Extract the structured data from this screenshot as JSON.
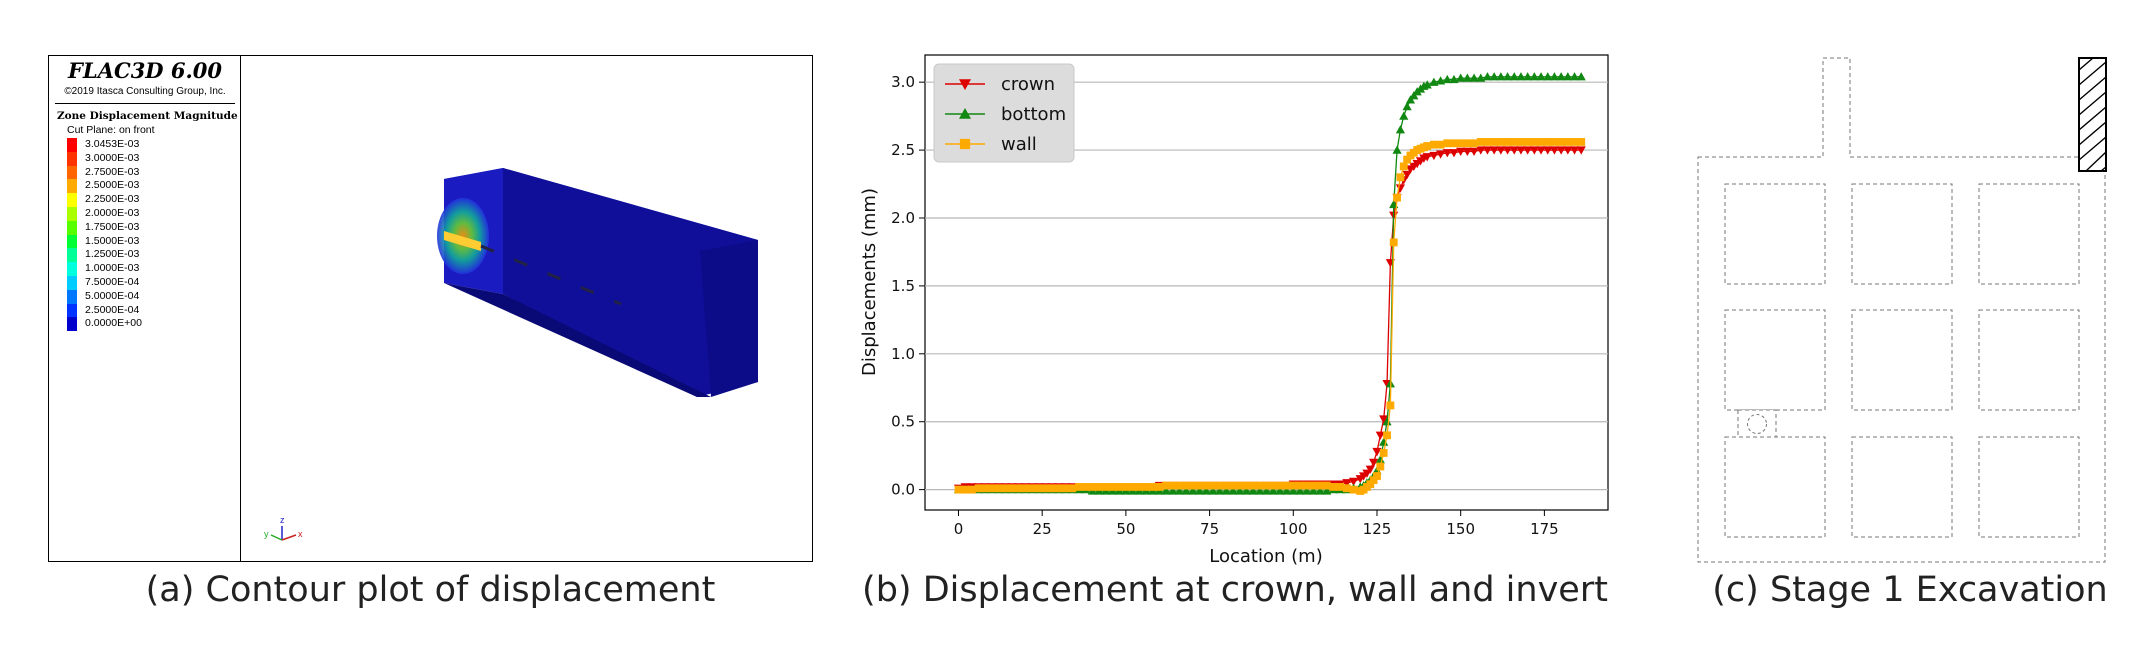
{
  "panel_a": {
    "title": "FLAC3D 6.00",
    "copyright": "©2019 Itasca Consulting Group, Inc.",
    "zone_title": "Zone Displacement Magnitude",
    "cut_plane": "Cut Plane: on front",
    "contours": [
      {
        "label": "3.0453E-03",
        "color": "#ff0000"
      },
      {
        "label": "3.0000E-03",
        "color": "#ff3300"
      },
      {
        "label": "2.7500E-03",
        "color": "#ff6600"
      },
      {
        "label": "2.5000E-03",
        "color": "#ffaa00"
      },
      {
        "label": "2.2500E-03",
        "color": "#ffff00"
      },
      {
        "label": "2.0000E-03",
        "color": "#aaff00"
      },
      {
        "label": "1.7500E-03",
        "color": "#55ff00"
      },
      {
        "label": "1.5000E-03",
        "color": "#00ff33"
      },
      {
        "label": "1.2500E-03",
        "color": "#00ff99"
      },
      {
        "label": "1.0000E-03",
        "color": "#00ffdd"
      },
      {
        "label": "7.5000E-04",
        "color": "#00ccff"
      },
      {
        "label": "5.0000E-04",
        "color": "#0077ff"
      },
      {
        "label": "2.5000E-04",
        "color": "#0033ff"
      },
      {
        "label": "0.0000E+00",
        "color": "#0000cc"
      }
    ],
    "axes_labels": {
      "x": "x",
      "y": "y",
      "z": "z"
    }
  },
  "captions": {
    "a": "(a) Contour plot of displacement",
    "b": "(b) Displacement at crown, wall and invert",
    "c": "(c) Stage 1 Excavation"
  },
  "chart_data": {
    "type": "line",
    "xlabel": "Location (m)",
    "ylabel": "Displacements (mm)",
    "xlim": [
      -10,
      194
    ],
    "ylim": [
      -0.15,
      3.2
    ],
    "xticks": [
      0,
      25,
      50,
      75,
      100,
      125,
      150,
      175
    ],
    "yticks": [
      0.0,
      0.5,
      1.0,
      1.5,
      2.0,
      2.5,
      3.0
    ],
    "grid": "horizontal",
    "legend_position": "top-left",
    "series": [
      {
        "name": "crown",
        "color": "#dd0000",
        "marker": "triangle-down",
        "x": [
          0,
          2,
          4,
          6,
          8,
          10,
          12,
          14,
          16,
          18,
          20,
          22,
          24,
          26,
          28,
          30,
          32,
          34,
          36,
          38,
          40,
          42,
          44,
          46,
          48,
          50,
          52,
          54,
          56,
          58,
          60,
          62,
          64,
          66,
          68,
          70,
          72,
          74,
          76,
          78,
          80,
          82,
          84,
          86,
          88,
          90,
          92,
          94,
          96,
          98,
          100,
          102,
          104,
          106,
          108,
          110,
          112,
          114,
          116,
          118,
          120,
          121,
          122,
          123,
          124,
          125,
          126,
          127,
          128,
          129,
          130,
          131,
          132,
          133,
          134,
          135,
          136,
          137,
          138,
          139,
          140,
          142,
          144,
          146,
          148,
          150,
          152,
          154,
          156,
          158,
          160,
          162,
          164,
          166,
          168,
          170,
          172,
          174,
          176,
          178,
          180,
          182,
          184,
          186
        ],
        "y": [
          0.01,
          0.02,
          0.02,
          0.02,
          0.02,
          0.02,
          0.02,
          0.02,
          0.02,
          0.02,
          0.02,
          0.02,
          0.02,
          0.02,
          0.02,
          0.02,
          0.02,
          0.02,
          0.02,
          0.02,
          0.02,
          0.02,
          0.02,
          0.02,
          0.02,
          0.02,
          0.02,
          0.02,
          0.02,
          0.02,
          0.03,
          0.03,
          0.03,
          0.03,
          0.03,
          0.03,
          0.03,
          0.03,
          0.03,
          0.03,
          0.03,
          0.03,
          0.03,
          0.03,
          0.03,
          0.03,
          0.03,
          0.03,
          0.03,
          0.03,
          0.04,
          0.04,
          0.04,
          0.04,
          0.04,
          0.04,
          0.04,
          0.04,
          0.05,
          0.06,
          0.08,
          0.1,
          0.12,
          0.15,
          0.2,
          0.28,
          0.4,
          0.52,
          0.78,
          1.67,
          2.02,
          2.15,
          2.22,
          2.28,
          2.32,
          2.36,
          2.38,
          2.4,
          2.42,
          2.44,
          2.45,
          2.46,
          2.47,
          2.48,
          2.48,
          2.49,
          2.49,
          2.49,
          2.5,
          2.5,
          2.5,
          2.5,
          2.5,
          2.5,
          2.5,
          2.5,
          2.5,
          2.5,
          2.5,
          2.5,
          2.5,
          2.5,
          2.5,
          2.5
        ]
      },
      {
        "name": "bottom",
        "color": "#118811",
        "marker": "triangle-up",
        "x": [
          0,
          2,
          4,
          6,
          8,
          10,
          12,
          14,
          16,
          18,
          20,
          22,
          24,
          26,
          28,
          30,
          32,
          34,
          36,
          38,
          40,
          42,
          44,
          46,
          48,
          50,
          52,
          54,
          56,
          58,
          60,
          62,
          64,
          66,
          68,
          70,
          72,
          74,
          76,
          78,
          80,
          82,
          84,
          86,
          88,
          90,
          92,
          94,
          96,
          98,
          100,
          102,
          104,
          106,
          108,
          110,
          112,
          114,
          116,
          118,
          120,
          121,
          122,
          123,
          124,
          125,
          126,
          127,
          128,
          129,
          130,
          131,
          132,
          133,
          134,
          135,
          136,
          137,
          138,
          139,
          140,
          142,
          144,
          146,
          148,
          150,
          152,
          154,
          156,
          158,
          160,
          162,
          164,
          166,
          168,
          170,
          172,
          174,
          176,
          178,
          180,
          182,
          184,
          186
        ],
        "y": [
          0.0,
          0.0,
          0.0,
          0.0,
          0.0,
          0.0,
          0.0,
          0.0,
          0.0,
          0.0,
          0.0,
          0.0,
          0.0,
          0.0,
          0.0,
          0.0,
          0.0,
          0.0,
          0.0,
          0.0,
          -0.01,
          -0.01,
          -0.01,
          -0.01,
          -0.01,
          -0.01,
          -0.01,
          -0.01,
          -0.01,
          -0.01,
          -0.01,
          -0.01,
          -0.01,
          -0.01,
          -0.01,
          -0.01,
          -0.01,
          -0.01,
          -0.01,
          -0.01,
          -0.01,
          -0.01,
          -0.01,
          -0.01,
          -0.01,
          -0.01,
          -0.01,
          -0.01,
          -0.01,
          -0.01,
          -0.01,
          -0.01,
          -0.01,
          -0.01,
          -0.01,
          -0.01,
          0.0,
          0.0,
          0.0,
          0.01,
          0.02,
          0.03,
          0.05,
          0.07,
          0.1,
          0.14,
          0.22,
          0.35,
          0.5,
          0.78,
          2.1,
          2.5,
          2.65,
          2.75,
          2.82,
          2.87,
          2.9,
          2.93,
          2.95,
          2.97,
          2.98,
          3.0,
          3.01,
          3.02,
          3.02,
          3.03,
          3.03,
          3.03,
          3.03,
          3.04,
          3.04,
          3.04,
          3.04,
          3.04,
          3.04,
          3.04,
          3.04,
          3.04,
          3.04,
          3.04,
          3.04,
          3.04,
          3.04,
          3.04
        ]
      },
      {
        "name": "wall",
        "color": "#ffaa00",
        "marker": "square",
        "x": [
          0,
          2,
          4,
          6,
          8,
          10,
          12,
          14,
          16,
          18,
          20,
          22,
          24,
          26,
          28,
          30,
          32,
          34,
          36,
          38,
          40,
          42,
          44,
          46,
          48,
          50,
          52,
          54,
          56,
          58,
          60,
          62,
          64,
          66,
          68,
          70,
          72,
          74,
          76,
          78,
          80,
          82,
          84,
          86,
          88,
          90,
          92,
          94,
          96,
          98,
          100,
          102,
          104,
          106,
          108,
          110,
          112,
          114,
          116,
          118,
          120,
          121,
          122,
          123,
          124,
          125,
          126,
          127,
          128,
          129,
          130,
          131,
          132,
          133,
          134,
          135,
          136,
          137,
          138,
          139,
          140,
          142,
          144,
          146,
          148,
          150,
          152,
          154,
          156,
          158,
          160,
          162,
          164,
          166,
          168,
          170,
          172,
          174,
          176,
          178,
          180,
          182,
          184,
          186
        ],
        "y": [
          0.0,
          0.0,
          0.0,
          0.01,
          0.01,
          0.01,
          0.01,
          0.01,
          0.01,
          0.01,
          0.01,
          0.01,
          0.01,
          0.01,
          0.01,
          0.01,
          0.01,
          0.01,
          0.02,
          0.02,
          0.02,
          0.02,
          0.02,
          0.02,
          0.02,
          0.02,
          0.02,
          0.02,
          0.02,
          0.02,
          0.02,
          0.03,
          0.03,
          0.03,
          0.03,
          0.03,
          0.03,
          0.03,
          0.03,
          0.03,
          0.03,
          0.03,
          0.03,
          0.03,
          0.03,
          0.03,
          0.03,
          0.03,
          0.03,
          0.03,
          0.03,
          0.03,
          0.03,
          0.03,
          0.03,
          0.03,
          0.02,
          0.02,
          0.01,
          0.0,
          -0.01,
          0.0,
          0.02,
          0.04,
          0.07,
          0.1,
          0.17,
          0.27,
          0.4,
          0.62,
          1.82,
          2.15,
          2.3,
          2.38,
          2.43,
          2.46,
          2.48,
          2.5,
          2.51,
          2.52,
          2.53,
          2.54,
          2.54,
          2.55,
          2.55,
          2.55,
          2.55,
          2.55,
          2.56,
          2.56,
          2.56,
          2.56,
          2.56,
          2.56,
          2.56,
          2.56,
          2.56,
          2.56,
          2.56,
          2.56,
          2.56,
          2.56,
          2.56,
          2.56
        ]
      }
    ]
  }
}
